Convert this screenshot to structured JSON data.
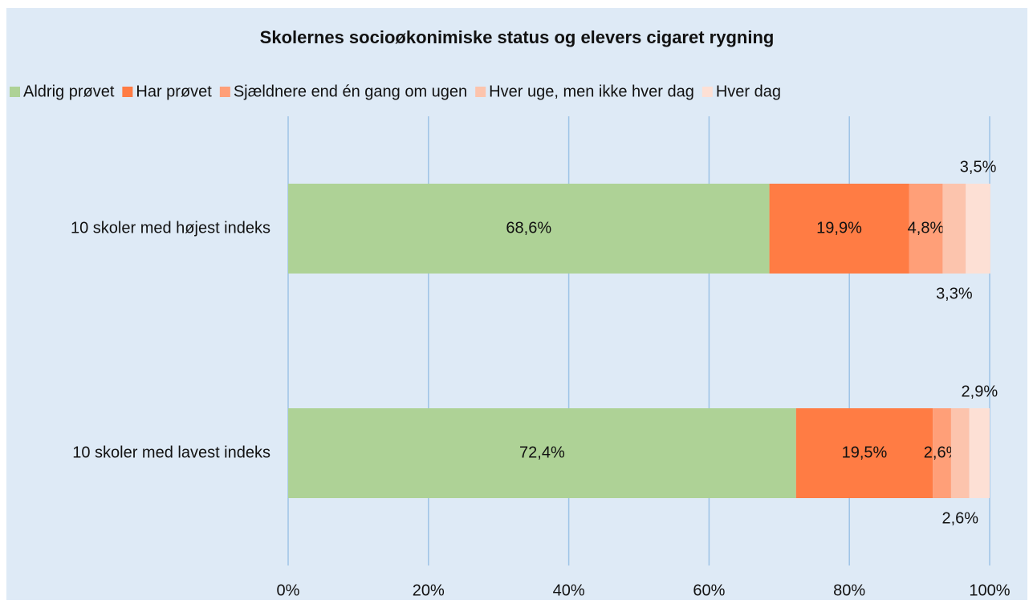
{
  "chart_data": {
    "type": "stacked-bar-horizontal",
    "title": "Skolernes socioøkonimiske status og elevers cigaret rygning",
    "categories": [
      "10 skoler med højest indeks",
      "10 skoler med lavest indeks"
    ],
    "series": [
      {
        "name": "Aldrig prøvet",
        "color": "#aed296",
        "values": [
          68.6,
          72.4
        ],
        "value_labels": [
          "68,6%",
          "72,4%"
        ]
      },
      {
        "name": "Har prøvet",
        "color": "#ff7c44",
        "values": [
          19.9,
          19.5
        ],
        "value_labels": [
          "19,9%",
          "19,5%"
        ]
      },
      {
        "name": "Sjældnere end én gang om ugen",
        "color": "#ff9f78",
        "values": [
          4.8,
          2.6
        ],
        "value_labels": [
          "4,8%",
          "2,6%"
        ]
      },
      {
        "name": "Hver uge, men ikke hver dag",
        "color": "#fcc4ad",
        "values": [
          3.3,
          2.6
        ],
        "value_labels": [
          "3,3%",
          "2,6%"
        ]
      },
      {
        "name": "Hver dag",
        "color": "#fde0d5",
        "values": [
          3.5,
          2.9
        ],
        "value_labels": [
          "3,5%",
          "2,9%"
        ]
      }
    ],
    "xlim": [
      0,
      100
    ],
    "xticks": [
      {
        "value": 0,
        "label": "0%"
      },
      {
        "value": 20,
        "label": "20%"
      },
      {
        "value": 40,
        "label": "40%"
      },
      {
        "value": 60,
        "label": "60%"
      },
      {
        "value": 80,
        "label": "80%"
      },
      {
        "value": 100,
        "label": "100%"
      }
    ],
    "grid": true,
    "legend": "top"
  }
}
